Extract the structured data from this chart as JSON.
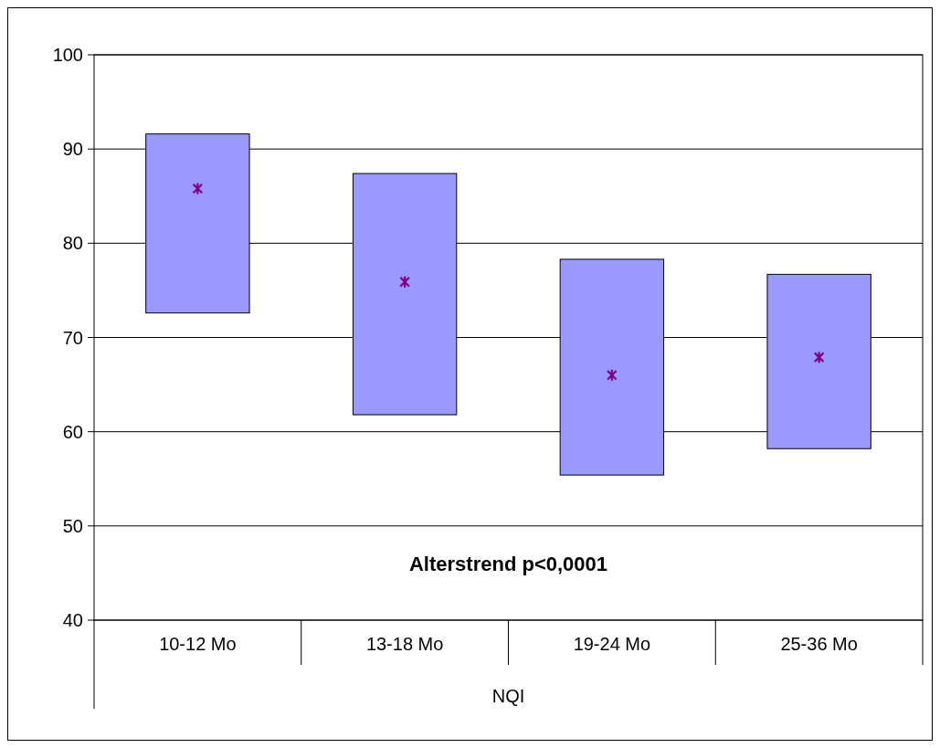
{
  "chart_data": {
    "type": "bar",
    "categories": [
      "10-12 Mo",
      "13-18 Mo",
      "19-24 Mo",
      "25-36 Mo"
    ],
    "xlabel": "NQI",
    "ylim": [
      40,
      100
    ],
    "yticks": [
      40,
      50,
      60,
      70,
      80,
      90,
      100
    ],
    "grid": "y",
    "annotations": [
      "Alterstrend p<0,0001"
    ],
    "series": [
      {
        "color": "#9999ff",
        "values": [
          19.0,
          25.6,
          22.9,
          18.5
        ],
        "base": [
          72.6,
          61.8,
          55.4,
          58.2
        ]
      },
      {
        "type": "scatter",
        "color": "#800080",
        "marker": "cross",
        "x": [
          "10-12 Mo",
          "13-18 Mo",
          "19-24 Mo",
          "25-36 Mo"
        ],
        "values": [
          85.8,
          75.9,
          66.0,
          67.9
        ]
      }
    ]
  }
}
